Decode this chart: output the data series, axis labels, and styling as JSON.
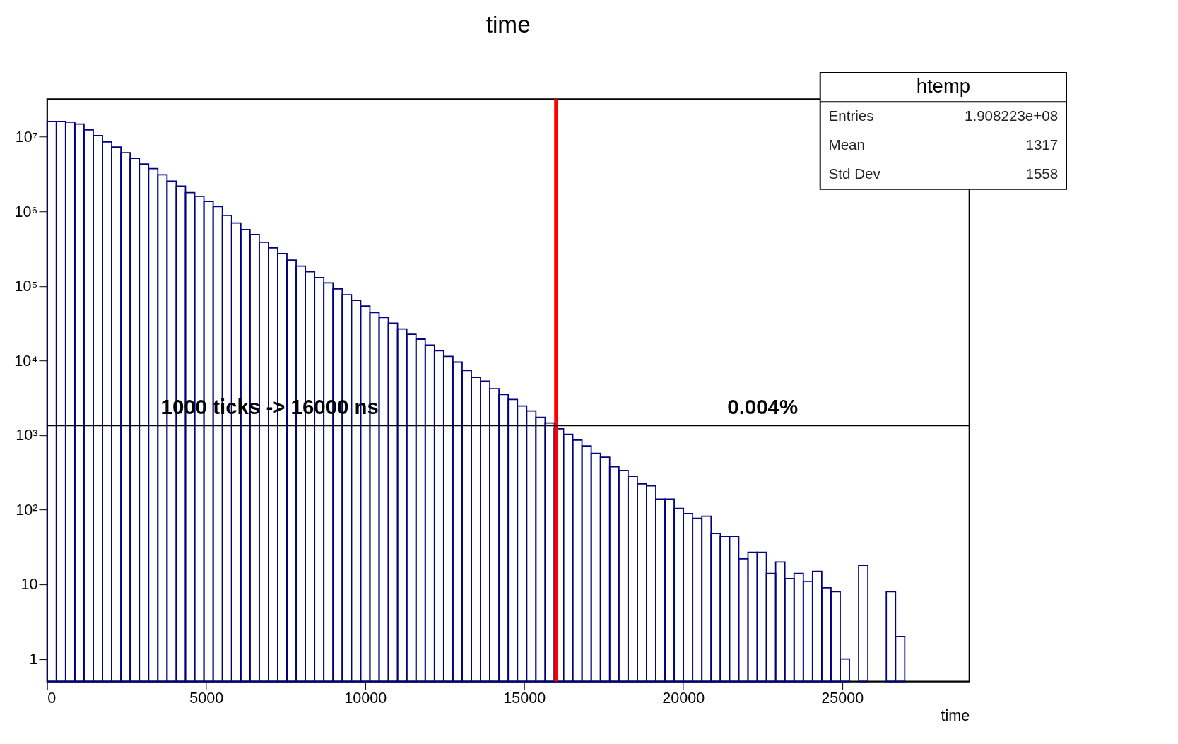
{
  "chart_data": {
    "type": "histogram",
    "title": "time",
    "xlabel": "time",
    "bins": [
      0,
      290,
      580,
      870,
      1160,
      1450,
      1740,
      2030,
      2320,
      2610,
      2900,
      3190,
      3480,
      3770,
      4060,
      4350,
      4640,
      4930,
      5220,
      5510,
      5800,
      6090,
      6380,
      6670,
      6960,
      7250,
      7540,
      7830,
      8120,
      8410,
      8700,
      8990,
      9280,
      9570,
      9860,
      10150,
      10440,
      10730,
      11020,
      11310,
      11600,
      11890,
      12180,
      12470,
      12760,
      13050,
      13340,
      13630,
      13920,
      14210,
      14500,
      14790,
      15080,
      15370,
      15660,
      15950,
      16240,
      16530,
      16820,
      17110,
      17400,
      17690,
      17980,
      18270,
      18560,
      18850,
      19140,
      19430,
      19720,
      20010,
      20300,
      20590,
      20880,
      21170,
      21460,
      21750,
      22040,
      22330,
      22620,
      22910,
      23200,
      23490,
      23780,
      24070,
      24360,
      24650,
      24940,
      25230,
      25520,
      25810,
      26100,
      26390,
      26680,
      26970,
      27260,
      27550,
      27840,
      28130,
      28420,
      28710,
      29000
    ],
    "values": [
      16100000,
      16100000,
      15700000,
      14800000,
      12400000,
      10400000,
      8530000,
      7310000,
      6140000,
      5140000,
      4320000,
      3750000,
      3100000,
      2540000,
      2180000,
      1790000,
      1590000,
      1360000,
      1160000,
      883000,
      698000,
      571000,
      490000,
      387000,
      325000,
      272000,
      223000,
      185000,
      155000,
      130000,
      110000,
      91400,
      76600,
      64100,
      53800,
      44000,
      37800,
      31700,
      26600,
      22500,
      19400,
      16200,
      13600,
      11400,
      9550,
      7390,
      5970,
      5310,
      4200,
      3520,
      3020,
      2470,
      2120,
      1740,
      1460,
      1220,
      1030,
      860,
      720,
      570,
      506,
      378,
      336,
      281,
      222,
      210,
      139,
      139,
      104,
      89,
      77,
      82,
      48,
      44,
      44,
      22,
      27,
      27,
      14,
      20,
      12,
      14,
      11,
      15,
      9,
      8,
      1,
      null,
      18,
      null,
      null,
      8,
      2,
      null,
      null,
      null,
      null,
      null,
      null,
      null
    ],
    "color": "#000080",
    "log": "y",
    "xlim": [
      0,
      29000
    ],
    "ylim": [
      0.5,
      32000000
    ],
    "xticks": [
      0,
      5000,
      10000,
      15000,
      20000,
      25000
    ],
    "yticks": [
      1,
      10,
      {
        "value": 100,
        "label": "10²"
      },
      {
        "value": 1000,
        "label": "10³"
      },
      {
        "value": 10000,
        "label": "10⁴"
      },
      {
        "value": 100000,
        "label": "10⁵"
      },
      {
        "value": 1000000,
        "label": "10⁶"
      },
      {
        "value": 10000000,
        "label": "10⁷"
      }
    ],
    "grid": false,
    "ref_lines": [
      {
        "axis": "x",
        "value": 16000,
        "color": "#ff0000"
      },
      {
        "axis": "y",
        "value": 1350,
        "color": "#000000"
      }
    ],
    "annotations": [
      {
        "text": "1000 ticks -> 16000 ns",
        "x": 7000,
        "y": 1350
      },
      {
        "text": "0.004%",
        "x": 22500,
        "y": 1350
      },
      "htemp",
      "Entries     1.908223e+08",
      "Mean     1317",
      "Std Dev     1558"
    ]
  }
}
